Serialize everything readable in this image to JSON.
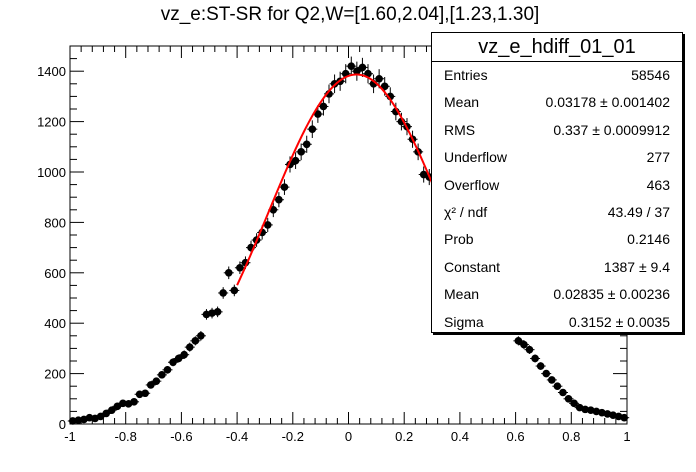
{
  "chart_data": {
    "type": "scatter",
    "title": "vz_e:ST-SR for Q2,W=[1.60,2.04],[1.23,1.30]",
    "xlim": [
      -1,
      1
    ],
    "ylim": [
      0,
      1500
    ],
    "x_ticks": [
      -1,
      -0.8,
      -0.6,
      -0.4,
      -0.2,
      0,
      0.2,
      0.4,
      0.6,
      0.8,
      1
    ],
    "x_tick_labels": [
      "-1",
      "-0.8",
      "-0.6",
      "-0.4",
      "-0.2",
      "0",
      "0.2",
      "0.4",
      "0.6",
      "0.8",
      "1"
    ],
    "y_ticks": [
      0,
      200,
      400,
      600,
      800,
      1000,
      1200,
      1400
    ],
    "y_tick_labels": [
      "0",
      "200",
      "400",
      "600",
      "800",
      "1000",
      "1200",
      "1400"
    ],
    "grid": false,
    "series": [
      {
        "x": [
          -0.99,
          -0.97,
          -0.95,
          -0.93,
          -0.91,
          -0.89,
          -0.87,
          -0.85,
          -0.83,
          -0.81,
          -0.79,
          -0.77,
          -0.75,
          -0.73,
          -0.71,
          -0.69,
          -0.67,
          -0.65,
          -0.63,
          -0.61,
          -0.59,
          -0.57,
          -0.55,
          -0.53,
          -0.51,
          -0.49,
          -0.47,
          -0.45,
          -0.43,
          -0.41,
          -0.39,
          -0.37,
          -0.35,
          -0.33,
          -0.31,
          -0.29,
          -0.27,
          -0.25,
          -0.23,
          -0.21,
          -0.19,
          -0.17,
          -0.15,
          -0.13,
          -0.11,
          -0.09,
          -0.07,
          -0.05,
          -0.03,
          -0.01,
          0.01,
          0.03,
          0.05,
          0.07,
          0.09,
          0.11,
          0.13,
          0.15,
          0.17,
          0.19,
          0.21,
          0.23,
          0.25,
          0.27,
          0.29,
          0.59,
          0.61,
          0.63,
          0.65,
          0.67,
          0.69,
          0.71,
          0.73,
          0.75,
          0.77,
          0.79,
          0.81,
          0.83,
          0.85,
          0.87,
          0.89,
          0.91,
          0.93,
          0.95,
          0.97,
          0.99
        ],
        "y": [
          12,
          15,
          18,
          25,
          22,
          30,
          42,
          55,
          70,
          82,
          80,
          88,
          118,
          122,
          155,
          170,
          195,
          215,
          245,
          260,
          275,
          305,
          330,
          350,
          435,
          440,
          445,
          520,
          600,
          530,
          620,
          640,
          700,
          730,
          760,
          790,
          850,
          890,
          940,
          1030,
          1045,
          1080,
          1110,
          1170,
          1230,
          1260,
          1310,
          1350,
          1360,
          1390,
          1420,
          1400,
          1415,
          1390,
          1350,
          1370,
          1340,
          1300,
          1240,
          1200,
          1180,
          1130,
          1080,
          990,
          980,
          385,
          330,
          315,
          295,
          260,
          230,
          200,
          175,
          150,
          125,
          100,
          82,
          65,
          58,
          55,
          50,
          45,
          40,
          35,
          30,
          25
        ],
        "yerr": [
          4,
          4,
          4,
          5,
          5,
          6,
          7,
          8,
          9,
          10,
          10,
          10,
          11,
          11,
          13,
          13,
          14,
          15,
          16,
          16,
          17,
          18,
          18,
          19,
          21,
          21,
          21,
          23,
          25,
          23,
          25,
          25,
          27,
          27,
          28,
          28,
          29,
          30,
          31,
          32,
          33,
          33,
          34,
          35,
          35,
          36,
          37,
          37,
          38,
          38,
          38,
          38,
          38,
          38,
          37,
          38,
          37,
          36,
          35,
          35,
          34,
          34,
          33,
          32,
          32,
          20,
          18,
          18,
          17,
          16,
          15,
          14,
          13,
          12,
          11,
          10,
          9,
          8,
          8,
          7,
          7,
          7,
          6,
          6,
          6,
          5
        ]
      }
    ],
    "fit": {
      "type": "gaussian",
      "constant": 1387,
      "mean": 0.02835,
      "sigma": 0.3152,
      "x_range": [
        -0.4,
        0.4
      ],
      "color": "#ff0000"
    }
  },
  "stats": {
    "name": "vz_e_hdiff_01_01",
    "rows": [
      {
        "name": "Entries",
        "value": "58546"
      },
      {
        "name": "Mean",
        "value": "0.03178 ± 0.001402"
      },
      {
        "name": "RMS",
        "value": "0.337 ± 0.0009912"
      },
      {
        "name": "Underflow",
        "value": "277"
      },
      {
        "name": "Overflow",
        "value": "463"
      },
      {
        "name": "χ² / ndf",
        "value": "43.49 / 37"
      },
      {
        "name": "Prob",
        "value": "0.2146"
      },
      {
        "name": "Constant",
        "value": "1387 ± 9.4"
      },
      {
        "name": "Mean",
        "value": "0.02835 ± 0.00236"
      },
      {
        "name": "Sigma",
        "value": "0.3152 ± 0.0035"
      }
    ]
  }
}
